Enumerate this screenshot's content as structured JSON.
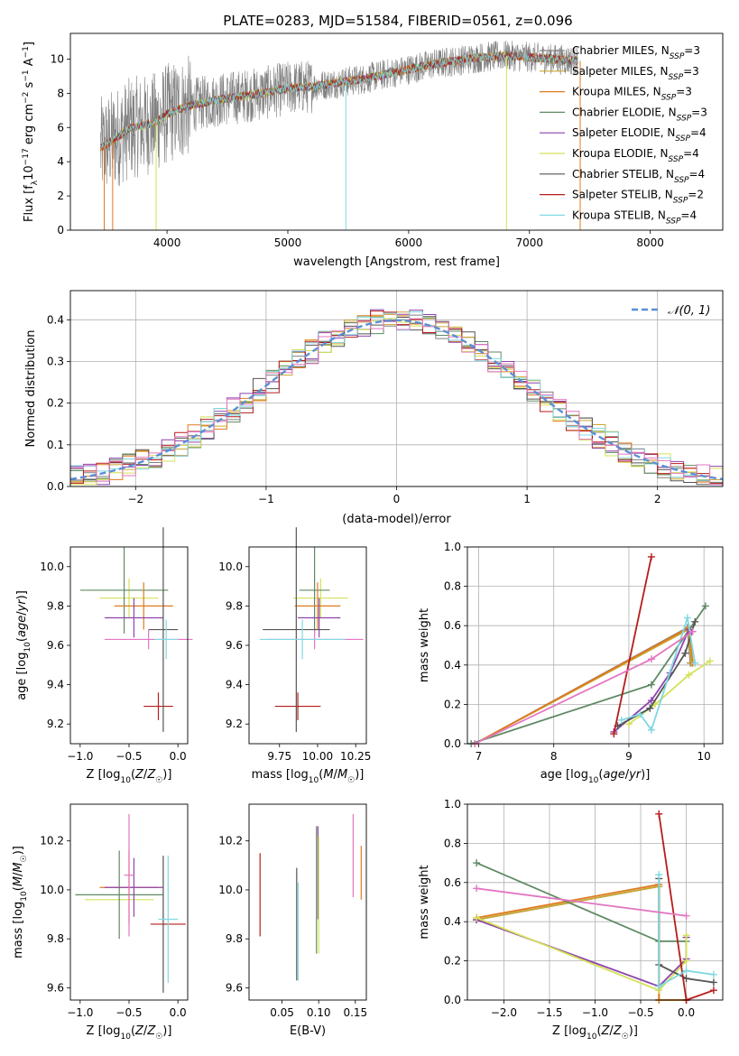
{
  "title": "PLATE=0283, MJD=51584, FIBERID=0561, z=0.096",
  "colors": {
    "Chabrier MILES": "#808080",
    "Salpeter MILES": "#c8a832",
    "Kroupa MILES": "#e07b1f",
    "Chabrier ELODIE": "#5f8a63",
    "Salpeter ELODIE": "#8e44ad",
    "Kroupa ELODIE": "#d4e157",
    "Chabrier STELIB": "#555555",
    "Salpeter STELIB": "#b71c1c",
    "Kroupa STELIB": "#80d8e0",
    "pink": "#e377c2",
    "normal": "#5b8fd6"
  },
  "chart_data": [
    {
      "id": "spectrum",
      "type": "line",
      "title": "PLATE=0283, MJD=51584, FIBERID=0561, z=0.096",
      "xlabel": "wavelength [Angstrom, rest frame]",
      "ylabel": "Flux [f_λ10^-17 erg cm^-2 s^-1 A^-1]",
      "xlim": [
        3200,
        8600
      ],
      "ylim": [
        0,
        11.5
      ],
      "xticks": [
        4000,
        5000,
        6000,
        7000,
        8000
      ],
      "yticks": [
        0,
        2,
        4,
        6,
        8,
        10
      ],
      "legend_position": "upper right",
      "grid": false,
      "legend": [
        {
          "label": "Chabrier MILES, N_SSP=3",
          "color": "#808080"
        },
        {
          "label": "Salpeter MILES, N_SSP=3",
          "color": "#c8a832"
        },
        {
          "label": "Kroupa MILES, N_SSP=3",
          "color": "#e07b1f"
        },
        {
          "label": "Chabrier ELODIE, N_SSP=3",
          "color": "#5f8a63"
        },
        {
          "label": "Salpeter ELODIE, N_SSP=4",
          "color": "#8e44ad"
        },
        {
          "label": "Kroupa ELODIE, N_SSP=4",
          "color": "#d4e157"
        },
        {
          "label": "Chabrier STELIB, N_SSP=4",
          "color": "#555555"
        },
        {
          "label": "Salpeter STELIB, N_SSP=2",
          "color": "#b71c1c"
        },
        {
          "label": "Kroupa STELIB, N_SSP=4",
          "color": "#80d8e0"
        }
      ],
      "continuum": {
        "x": [
          3450,
          3600,
          3700,
          3800,
          3900,
          4000,
          4200,
          4400,
          4600,
          4800,
          5000,
          5200,
          5400,
          5600,
          5800,
          6000,
          6200,
          6400,
          6600,
          6800,
          7000,
          7200,
          7400
        ],
        "y": [
          4.8,
          5.5,
          6.0,
          6.1,
          6.3,
          6.8,
          7.3,
          7.6,
          7.8,
          8.0,
          8.3,
          8.4,
          8.6,
          8.8,
          9.1,
          9.4,
          9.7,
          9.9,
          10.1,
          10.2,
          10.1,
          10.0,
          9.9
        ]
      }
    },
    {
      "id": "residuals",
      "type": "histogram",
      "xlabel": "(data-model)/error",
      "ylabel": "Normed distribution",
      "xlim": [
        -2.5,
        2.5
      ],
      "ylim": [
        0,
        0.47
      ],
      "xticks": [
        -2,
        -1,
        0,
        1,
        2
      ],
      "yticks": [
        0.0,
        0.1,
        0.2,
        0.3,
        0.4
      ],
      "grid": true,
      "legend": [
        {
          "label": "𝒩(0, 1)",
          "style": "dashed",
          "color": "#5b8fd6"
        }
      ],
      "bins": 50,
      "bin_range": [
        -2.5,
        2.5
      ]
    },
    {
      "id": "age_vs_Z",
      "type": "errorbar",
      "xlabel": "Z [log10(Z/Z☉)]",
      "ylabel": "age  [log10(age/yr)]",
      "xlim": [
        -1.1,
        0.1
      ],
      "ylim": [
        9.1,
        10.1
      ],
      "xticks": [
        -1.0,
        -0.5,
        0.0
      ],
      "yticks": [
        9.2,
        9.4,
        9.6,
        9.8,
        10.0
      ],
      "grid": false,
      "points": [
        {
          "x": -0.5,
          "xerr": 0.3,
          "y": 9.84,
          "yerr": 0.1,
          "color": "#d4e157"
        },
        {
          "x": -0.55,
          "xerr": 0.45,
          "y": 9.88,
          "yerr": 0.22,
          "color": "#5f8a63"
        },
        {
          "x": -0.35,
          "xerr": 0.3,
          "y": 9.8,
          "yerr": 0.12,
          "color": "#e07b1f"
        },
        {
          "x": -0.45,
          "xerr": 0.3,
          "y": 9.74,
          "yerr": 0.1,
          "color": "#8e44ad"
        },
        {
          "x": -0.3,
          "xerr": 0.45,
          "y": 9.63,
          "yerr": 0.05,
          "color": "#e377c2"
        },
        {
          "x": -0.2,
          "xerr": 0.15,
          "y": 9.29,
          "yerr": 0.07,
          "color": "#b71c1c"
        },
        {
          "x": -0.15,
          "xerr": 0.15,
          "y": 9.68,
          "yerr": 0.52,
          "color": "#555555"
        },
        {
          "x": -0.12,
          "xerr": 0.12,
          "y": 9.63,
          "yerr": 0.1,
          "color": "#80d8e0"
        }
      ]
    },
    {
      "id": "age_vs_mass",
      "type": "errorbar",
      "xlabel": "mass [log10(M/M☉)]",
      "ylabel": "",
      "xlim": [
        9.55,
        10.32
      ],
      "ylim": [
        9.1,
        10.1
      ],
      "xticks": [
        9.75,
        10.0,
        10.25
      ],
      "yticks": [
        9.2,
        9.4,
        9.6,
        9.8,
        10.0
      ],
      "grid": false,
      "points": [
        {
          "x": 10.02,
          "xerr": 0.18,
          "y": 9.84,
          "yerr": 0.1,
          "color": "#d4e157"
        },
        {
          "x": 9.98,
          "xerr": 0.1,
          "y": 9.88,
          "yerr": 0.22,
          "color": "#5f8a63"
        },
        {
          "x": 10.0,
          "xerr": 0.15,
          "y": 9.8,
          "yerr": 0.12,
          "color": "#e07b1f"
        },
        {
          "x": 10.01,
          "xerr": 0.14,
          "y": 9.74,
          "yerr": 0.1,
          "color": "#8e44ad"
        },
        {
          "x": 9.98,
          "xerr": 0.32,
          "y": 9.63,
          "yerr": 0.05,
          "color": "#e377c2"
        },
        {
          "x": 9.87,
          "xerr": 0.15,
          "y": 9.29,
          "yerr": 0.07,
          "color": "#b71c1c"
        },
        {
          "x": 9.86,
          "xerr": 0.22,
          "y": 9.68,
          "yerr": 0.52,
          "color": "#555555"
        },
        {
          "x": 9.9,
          "xerr": 0.28,
          "y": 9.63,
          "yerr": 0.1,
          "color": "#80d8e0"
        }
      ]
    },
    {
      "id": "weight_vs_age",
      "type": "line",
      "xlabel": "age  [log10(age/yr)]",
      "ylabel": "mass weight",
      "xlim": [
        6.85,
        10.25
      ],
      "ylim": [
        0.0,
        1.0
      ],
      "xticks": [
        7,
        8,
        9,
        10
      ],
      "yticks": [
        0.0,
        0.2,
        0.4,
        0.6,
        0.8,
        1.0
      ],
      "grid": true,
      "series": [
        {
          "color": "#808080",
          "x": [
            6.95,
            9.78,
            9.82
          ],
          "y": [
            0.0,
            0.59,
            0.41
          ]
        },
        {
          "color": "#c8a832",
          "x": [
            6.95,
            9.79,
            9.83
          ],
          "y": [
            0.0,
            0.58,
            0.41
          ]
        },
        {
          "color": "#e07b1f",
          "x": [
            6.95,
            9.8,
            9.85
          ],
          "y": [
            0.0,
            0.59,
            0.41
          ]
        },
        {
          "color": "#5f8a63",
          "x": [
            6.9,
            9.3,
            10.02
          ],
          "y": [
            0.0,
            0.3,
            0.7
          ]
        },
        {
          "color": "#8e44ad",
          "x": [
            8.8,
            9.3,
            9.55,
            9.8
          ],
          "y": [
            0.06,
            0.22,
            0.36,
            0.58
          ]
        },
        {
          "color": "#d4e157",
          "x": [
            9.0,
            9.35,
            9.8,
            10.08
          ],
          "y": [
            0.1,
            0.2,
            0.35,
            0.42
          ]
        },
        {
          "color": "#555555",
          "x": [
            8.85,
            9.28,
            9.75,
            9.88
          ],
          "y": [
            0.09,
            0.18,
            0.46,
            0.62
          ]
        },
        {
          "color": "#b71c1c",
          "x": [
            8.8,
            9.3
          ],
          "y": [
            0.05,
            0.95
          ]
        },
        {
          "color": "#80d8e0",
          "x": [
            8.9,
            9.15,
            9.3,
            9.78,
            9.88
          ],
          "y": [
            0.12,
            0.15,
            0.07,
            0.64,
            0.41
          ]
        },
        {
          "color": "#e377c2",
          "x": [
            6.95,
            9.3,
            9.85
          ],
          "y": [
            0.0,
            0.43,
            0.57
          ]
        }
      ]
    },
    {
      "id": "mass_vs_Z",
      "type": "errorbar",
      "xlabel": "Z [log10(Z/Z☉)]",
      "ylabel": "mass [log10(M/M☉)]",
      "xlim": [
        -1.1,
        0.1
      ],
      "ylim": [
        9.55,
        10.35
      ],
      "xticks": [
        -1.0,
        -0.5,
        0.0
      ],
      "yticks": [
        9.6,
        9.8,
        10.0,
        10.2
      ],
      "grid": false,
      "points": [
        {
          "x": -0.6,
          "xerr": 0.35,
          "y": 9.96,
          "yerr": 0.0,
          "color": "#d4e157"
        },
        {
          "x": -0.6,
          "xerr": 0.45,
          "y": 9.98,
          "yerr": 0.18,
          "color": "#5f8a63"
        },
        {
          "x": -0.5,
          "xerr": 0.3,
          "y": 10.01,
          "yerr": 0.15,
          "color": "#e07b1f"
        },
        {
          "x": -0.45,
          "xerr": 0.3,
          "y": 10.01,
          "yerr": 0.12,
          "color": "#8e44ad"
        },
        {
          "x": -0.5,
          "xerr": 0.05,
          "y": 10.06,
          "yerr": 0.25,
          "color": "#e377c2"
        },
        {
          "x": -0.1,
          "xerr": 0.18,
          "y": 9.86,
          "yerr": 0.0,
          "color": "#b71c1c"
        },
        {
          "x": -0.15,
          "xerr": 0.0,
          "y": 9.86,
          "yerr": 0.28,
          "color": "#555555"
        },
        {
          "x": -0.1,
          "xerr": 0.1,
          "y": 9.88,
          "yerr": 0.26,
          "color": "#80d8e0"
        }
      ]
    },
    {
      "id": "mass_vs_ebv",
      "type": "errorbar",
      "xlabel": "E(B-V)",
      "ylabel": "",
      "xlim": [
        0.005,
        0.165
      ],
      "ylim": [
        9.55,
        10.35
      ],
      "xticks": [
        0.05,
        0.1,
        0.15
      ],
      "yticks": [
        9.6,
        9.8,
        10.0,
        10.2
      ],
      "grid": false,
      "points": [
        {
          "x": 0.02,
          "y": 9.98,
          "yerr": 0.17,
          "color": "#b71c1c"
        },
        {
          "x": 0.07,
          "y": 9.86,
          "yerr": 0.23,
          "color": "#555555"
        },
        {
          "x": 0.072,
          "y": 9.83,
          "yerr": 0.2,
          "color": "#80d8e0"
        },
        {
          "x": 0.097,
          "y": 10.0,
          "yerr": 0.26,
          "color": "#5f8a63"
        },
        {
          "x": 0.099,
          "y": 10.07,
          "yerr": 0.19,
          "color": "#8e44ad"
        },
        {
          "x": 0.1,
          "y": 9.98,
          "yerr": 0.24,
          "color": "#d4e157"
        },
        {
          "x": 0.147,
          "y": 10.14,
          "yerr": 0.17,
          "color": "#e377c2"
        },
        {
          "x": 0.158,
          "y": 10.07,
          "yerr": 0.11,
          "color": "#e07b1f"
        }
      ]
    },
    {
      "id": "weight_vs_Z",
      "type": "line",
      "xlabel": "Z [log10(Z/Z☉)]",
      "ylabel": "mass weight",
      "xlim": [
        -2.4,
        0.4
      ],
      "ylim": [
        0.0,
        1.0
      ],
      "xticks": [
        -2.0,
        -1.5,
        -1.0,
        -0.5,
        0.0
      ],
      "yticks": [
        0.0,
        0.2,
        0.4,
        0.6,
        0.8,
        1.0
      ],
      "grid": true,
      "series": [
        {
          "color": "#808080",
          "x": [
            -2.3,
            -0.3,
            -0.3,
            0.0
          ],
          "y": [
            0.41,
            0.58,
            0.0,
            0.0
          ]
        },
        {
          "color": "#c8a832",
          "x": [
            -2.3,
            -0.3,
            -0.3,
            0.0
          ],
          "y": [
            0.41,
            0.58,
            0.0,
            0.0
          ]
        },
        {
          "color": "#e07b1f",
          "x": [
            -2.3,
            -0.3,
            -0.3,
            0.0
          ],
          "y": [
            0.42,
            0.59,
            0.0,
            0.0
          ]
        },
        {
          "color": "#5f8a63",
          "x": [
            -2.3,
            -0.3,
            0.0
          ],
          "y": [
            0.7,
            0.3,
            0.3
          ]
        },
        {
          "color": "#8e44ad",
          "x": [
            -2.3,
            -0.3,
            0.0,
            0.0
          ],
          "y": [
            0.41,
            0.07,
            0.21,
            0.32
          ]
        },
        {
          "color": "#d4e157",
          "x": [
            -2.3,
            -0.3,
            0.0,
            0.0
          ],
          "y": [
            0.42,
            0.05,
            0.2,
            0.33
          ]
        },
        {
          "color": "#555555",
          "x": [
            -0.3,
            -0.3,
            0.0,
            0.3
          ],
          "y": [
            0.62,
            0.18,
            0.11,
            0.09
          ]
        },
        {
          "color": "#b71c1c",
          "x": [
            -0.3,
            0.0,
            0.3
          ],
          "y": [
            0.95,
            0.0,
            0.05
          ]
        },
        {
          "color": "#80d8e0",
          "x": [
            -0.3,
            -0.3,
            0.0,
            0.3
          ],
          "y": [
            0.64,
            0.07,
            0.15,
            0.13
          ]
        },
        {
          "color": "#e377c2",
          "x": [
            -2.3,
            0.0
          ],
          "y": [
            0.57,
            0.43
          ]
        }
      ]
    }
  ]
}
